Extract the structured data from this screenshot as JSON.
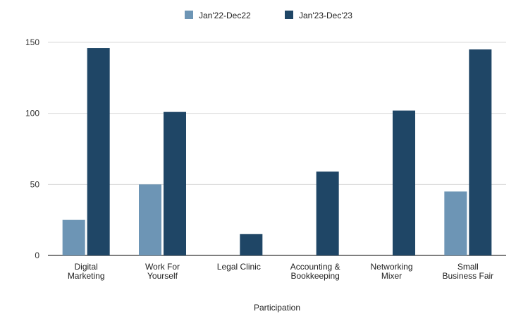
{
  "header_cut_text": "",
  "chart_data": {
    "type": "bar",
    "title": "",
    "xlabel": "Participation",
    "ylabel": "",
    "ylim": [
      0,
      150
    ],
    "yticks": [
      0,
      50,
      100,
      150
    ],
    "grid": true,
    "legend_position": "top",
    "categories": [
      [
        "Digital",
        "Marketing"
      ],
      [
        "Work For",
        "Yourself"
      ],
      [
        "Legal Clinic"
      ],
      [
        "Accounting &",
        "Bookkeeping"
      ],
      [
        "Networking",
        "Mixer"
      ],
      [
        "Small",
        "Business Fair"
      ]
    ],
    "series": [
      {
        "name": "Jan'22-Dec22",
        "color": "#6d95b5",
        "values": [
          25,
          50,
          0,
          0,
          0,
          45
        ]
      },
      {
        "name": "Jan'23-Dec'23",
        "color": "#1f4666",
        "values": [
          146,
          101,
          15,
          59,
          102,
          145
        ]
      }
    ]
  }
}
